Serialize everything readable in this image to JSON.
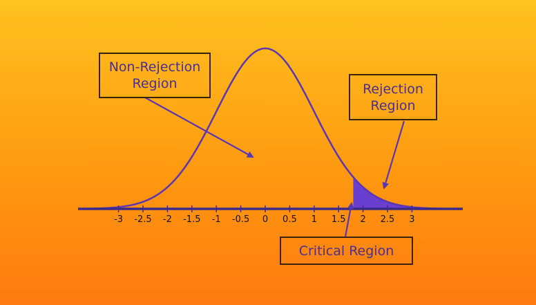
{
  "colors": {
    "background_top": "#ffc21f",
    "background_bottom": "#ff7a10",
    "curve": "#5b36b0",
    "shaded_region": "#6a3fd0",
    "axis": "#3b2a8a",
    "box_border": "#3a2206",
    "label_text": "#4a2f8c"
  },
  "labels": {
    "non_rejection": [
      "Non-Rejection",
      "Region"
    ],
    "rejection": [
      "Rejection",
      "Region"
    ],
    "critical": "Critical Region"
  },
  "axis": {
    "ticks": [
      {
        "value": -3,
        "label": "-3"
      },
      {
        "value": -2.5,
        "label": "-2.5"
      },
      {
        "value": -2,
        "label": "-2"
      },
      {
        "value": -1.5,
        "label": "-1.5"
      },
      {
        "value": -1,
        "label": "-1"
      },
      {
        "value": -0.5,
        "label": "-0.5"
      },
      {
        "value": 0,
        "label": "0"
      },
      {
        "value": 0.5,
        "label": "0.5"
      },
      {
        "value": 1,
        "label": "1"
      },
      {
        "value": 1.5,
        "label": "1.5"
      },
      {
        "value": 2,
        "label": "2"
      },
      {
        "value": 2.5,
        "label": "2.5"
      },
      {
        "value": 3,
        "label": "3"
      }
    ],
    "range": [
      -3.8,
      4
    ]
  },
  "distribution": {
    "type": "standard-normal",
    "critical_value": 1.8,
    "shaded_tail": "right"
  }
}
